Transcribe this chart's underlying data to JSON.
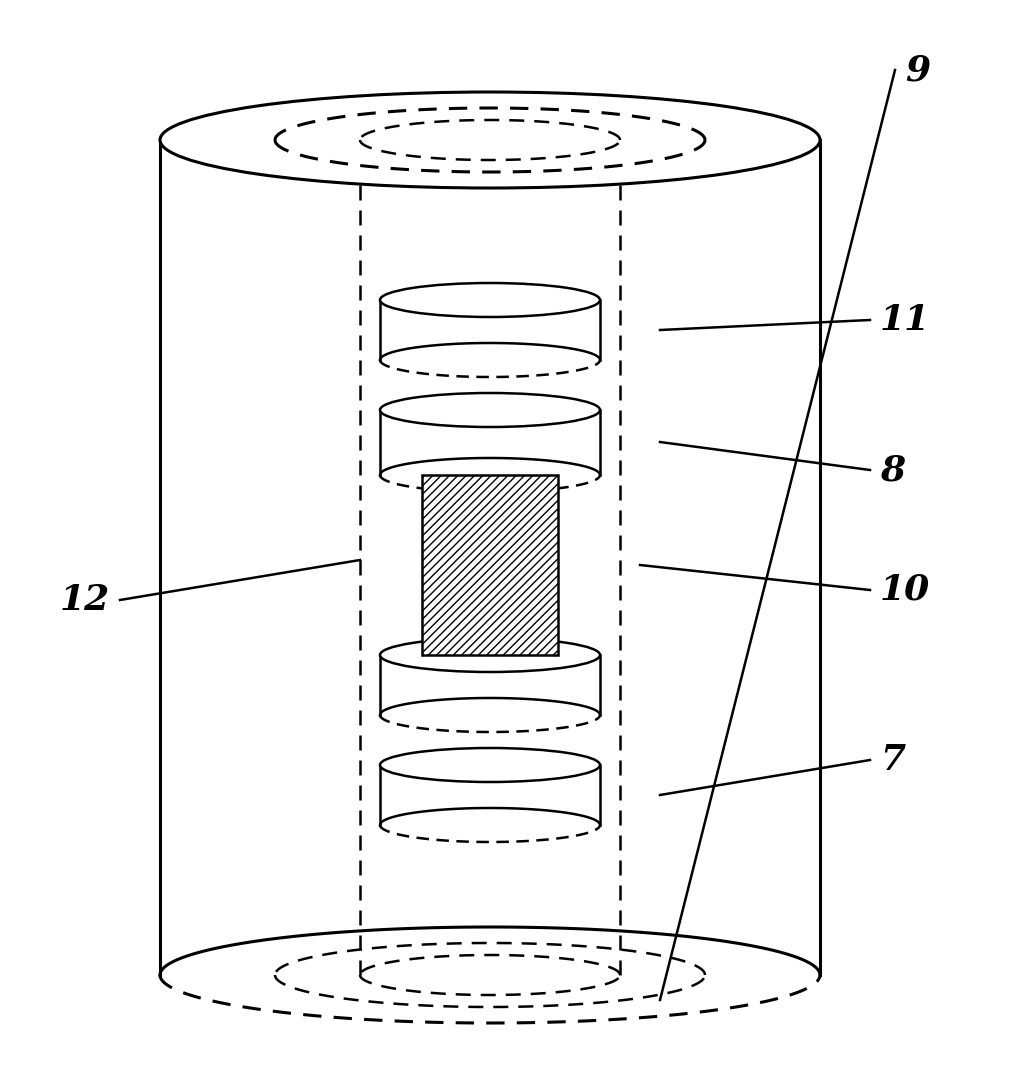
{
  "background_color": "#ffffff",
  "line_color": "#000000",
  "figsize": [
    10.3,
    10.9
  ],
  "dpi": 100,
  "lw_main": 2.2,
  "lw_thin": 1.8,
  "label_fontsize": 26
}
